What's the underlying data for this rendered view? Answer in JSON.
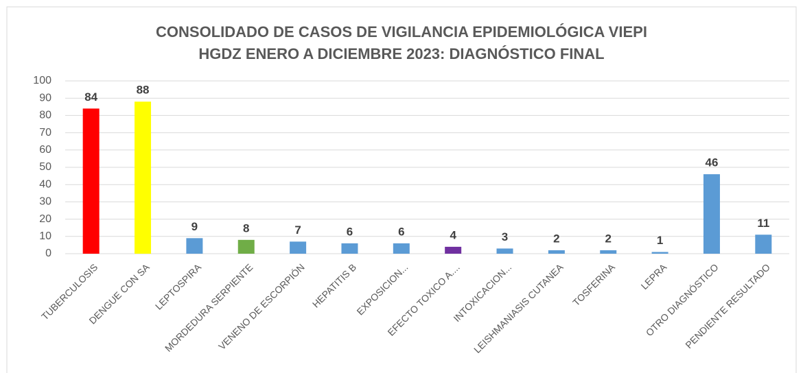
{
  "chart_data": {
    "type": "bar",
    "title": [
      "CONSOLIDADO DE CASOS DE VIGILANCIA EPIDEMIOLÓGICA VIEPI",
      "HGDZ ENERO A DICIEMBRE 2023: DIAGNÓSTICO FINAL"
    ],
    "categories": [
      "TUBERCULOSIS",
      "DENGUE CON SA",
      "LEPTOSPIRA",
      "MORDEDURA SERPIENTE",
      "VENENO DE ESCORPIÓN",
      "HEPATITIS B",
      "EXPOSICION...",
      "EFECTO TOXICO A....",
      "INTOXICACION...",
      "LEISHMANIASIS CUTANEA",
      "TOSFERINA",
      "LEPRA",
      "OTRO DIAGNÓSTICO",
      "PENDIENTE RESULTADO"
    ],
    "values": [
      84,
      88,
      9,
      8,
      7,
      6,
      6,
      4,
      3,
      2,
      2,
      1,
      46,
      11
    ],
    "colors": [
      "#ff0000",
      "#ffff00",
      "#5b9bd5",
      "#70ad47",
      "#5b9bd5",
      "#5b9bd5",
      "#5b9bd5",
      "#7030a0",
      "#5b9bd5",
      "#5b9bd5",
      "#5b9bd5",
      "#5b9bd5",
      "#5b9bd5",
      "#5b9bd5"
    ],
    "ylim": [
      0,
      100
    ],
    "yticks": [
      0,
      10,
      20,
      30,
      40,
      50,
      60,
      70,
      80,
      90,
      100
    ],
    "grid": true
  }
}
